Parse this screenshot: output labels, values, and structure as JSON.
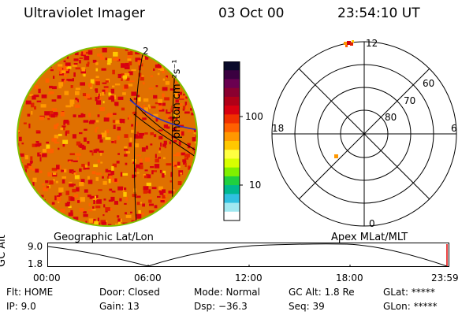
{
  "header": {
    "title": "Ultraviolet Imager",
    "date": "03 Oct 00",
    "time": "23:54:10 UT"
  },
  "colorbar": {
    "unit_label": "photon cm⁻²s⁻¹",
    "ticks": [
      "100",
      "10"
    ],
    "colors": [
      "#0a0a2a",
      "#3a0040",
      "#6a0050",
      "#8a0030",
      "#b00018",
      "#d80010",
      "#f03000",
      "#ff6000",
      "#ff9800",
      "#ffc800",
      "#ffff40",
      "#d8ff00",
      "#80f000",
      "#20d040",
      "#00b890",
      "#30c0e0",
      "#a0e8f0",
      "#ffffff"
    ]
  },
  "polar": {
    "mlt_labels": {
      "top": "12",
      "left": "18",
      "right": "6",
      "bottom": "0"
    },
    "lat_labels": [
      "60",
      "70",
      "80"
    ]
  },
  "footer": {
    "left_label": "Geographic Lat/Lon",
    "right_label": "Apex MLat/MLT",
    "axis_title": "GC Alt",
    "y_ticks": [
      "9.0",
      "1.8"
    ],
    "x_ticks": [
      "00:00",
      "06:00",
      "12:00",
      "18:00",
      "23:59"
    ]
  },
  "info": {
    "flt": "Flt:  HOME",
    "ip": "IP:   9.0",
    "door": "Door: Closed",
    "gain": "Gain: 13",
    "mode": "Mode: Normal",
    "dsp": "Dsp:   −36.3",
    "gcalt": "GC Alt: 1.8 Re",
    "seq": "Seq: 39",
    "glat": "GLat: *****",
    "glon": "GLon: *****"
  }
}
